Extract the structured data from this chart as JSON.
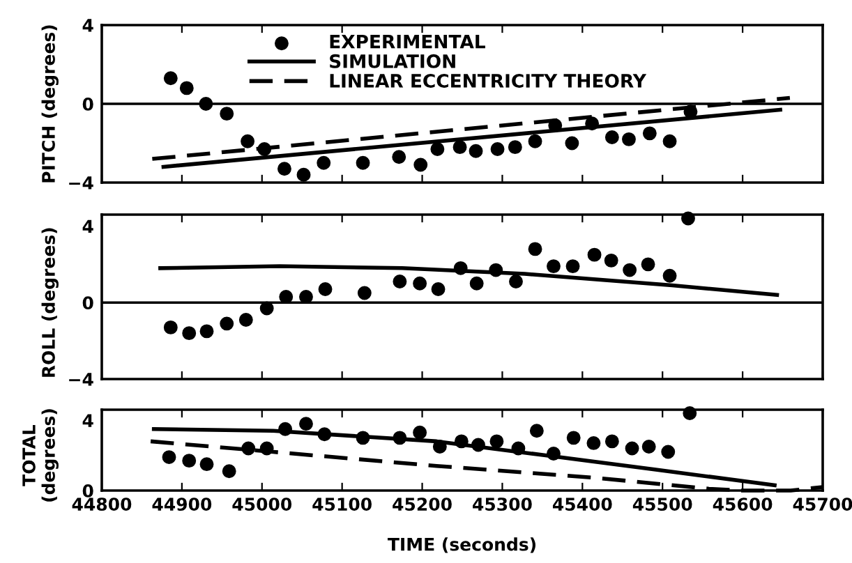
{
  "chart_data": [
    {
      "type": "scatter",
      "ylabel": "PITCH (degrees)",
      "xlim": [
        44800,
        45700
      ],
      "xticks": [
        44800,
        44900,
        45000,
        45100,
        45200,
        45300,
        45400,
        45500,
        45600,
        45700
      ],
      "ylim": [
        -4,
        4
      ],
      "yticks": [
        {
          "value": -4,
          "label": "−4"
        },
        0,
        4
      ],
      "tick_labels": "y",
      "legend": "top",
      "ref_lines": [
        {
          "axis": "y",
          "value": 0
        }
      ],
      "series": [
        {
          "name": "EXPERIMENTAL",
          "marker": "circle",
          "color": "#000000",
          "x": [
            44886,
            44906,
            44930,
            44956,
            44982,
            45003,
            45028,
            45052,
            45077,
            45126,
            45171,
            45198,
            45219,
            45247,
            45267,
            45294,
            45316,
            45341,
            45366,
            45387,
            45412,
            45437,
            45458,
            45484,
            45509,
            45535
          ],
          "values": [
            1.3,
            0.8,
            0,
            -0.5,
            -1.9,
            -2.3,
            -3.3,
            -3.6,
            -3.0,
            -3.0,
            -2.7,
            -3.1,
            -2.3,
            -2.2,
            -2.4,
            -2.3,
            -2.2,
            -1.9,
            -1.1,
            -2.0,
            -1.0,
            -1.7,
            -1.8,
            -1.5,
            -1.9,
            -0.4
          ]
        },
        {
          "name": "SIMULATION",
          "type": "line",
          "line_style": "solid",
          "color": "#000000",
          "x": [
            44877,
            45647
          ],
          "values": [
            -3.2,
            -0.3
          ]
        },
        {
          "name": "LINEAR ECCENTRICITY THEORY",
          "type": "line",
          "line_style": "dashed",
          "color": "#000000",
          "x": [
            44863,
            45659
          ],
          "values": [
            -2.8,
            0.3
          ]
        }
      ]
    },
    {
      "type": "scatter",
      "ylabel": "ROLL (degrees)",
      "xlim": [
        44800,
        45700
      ],
      "xticks": [
        44800,
        44900,
        45000,
        45100,
        45200,
        45300,
        45400,
        45500,
        45600,
        45700
      ],
      "ylim": [
        -4,
        4.6
      ],
      "yticks": [
        {
          "value": -4,
          "label": "−4"
        },
        0,
        4
      ],
      "tick_labels": "y",
      "ref_lines": [
        {
          "axis": "y",
          "value": 0
        }
      ],
      "series": [
        {
          "marker": "circle",
          "color": "#000000",
          "x": [
            44886,
            44909,
            44931,
            44956,
            44980,
            45006,
            45030,
            45055,
            45079,
            45128,
            45172,
            45197,
            45220,
            45248,
            45268,
            45292,
            45317,
            45341,
            45364,
            45388,
            45415,
            45436,
            45459,
            45482,
            45509,
            45532
          ],
          "values": [
            -1.3,
            -1.6,
            -1.5,
            -1.1,
            -0.9,
            -0.3,
            0.3,
            0.3,
            0.7,
            0.5,
            1.1,
            1.0,
            0.7,
            1.8,
            1.0,
            1.7,
            1.1,
            2.8,
            1.9,
            1.9,
            2.5,
            2.2,
            1.7,
            2.0,
            1.4,
            4.4
          ]
        },
        {
          "type": "line",
          "line_style": "solid",
          "color": "#000000",
          "x": [
            44873,
            45022,
            45175,
            45328,
            45512,
            45643
          ],
          "values": [
            1.8,
            1.9,
            1.8,
            1.5,
            0.9,
            0.4
          ]
        }
      ]
    },
    {
      "type": "scatter",
      "ylabel": "TOTAL\n(degrees)",
      "xlabel": "TIME (seconds)",
      "xlim": [
        44800,
        45700
      ],
      "xticks": [
        44800,
        44900,
        45000,
        45100,
        45200,
        45300,
        45400,
        45500,
        45600,
        45700
      ],
      "ylim": [
        0,
        4.6
      ],
      "yticks": [
        0,
        4
      ],
      "series": [
        {
          "marker": "circle",
          "color": "#000000",
          "x": [
            44884,
            44909,
            44931,
            44959,
            44983,
            45006,
            45029,
            45055,
            45078,
            45126,
            45172,
            45197,
            45222,
            45249,
            45270,
            45293,
            45320,
            45343,
            45364,
            45389,
            45414,
            45437,
            45462,
            45483,
            45507,
            45534
          ],
          "values": [
            1.9,
            1.7,
            1.5,
            1.1,
            2.4,
            2.4,
            3.5,
            3.8,
            3.2,
            3.0,
            3.0,
            3.3,
            2.5,
            2.8,
            2.6,
            2.8,
            2.4,
            3.4,
            2.1,
            3.0,
            2.7,
            2.8,
            2.4,
            2.5,
            2.2,
            4.4
          ]
        },
        {
          "type": "line",
          "line_style": "solid",
          "color": "#000000",
          "x": [
            44865,
            45014,
            45218,
            45354,
            45490,
            45640
          ],
          "values": [
            3.5,
            3.4,
            2.8,
            2.0,
            1.2,
            0.3
          ]
        },
        {
          "type": "line",
          "line_style": "dashed",
          "color": "#000000",
          "x": [
            44861,
            45014,
            45218,
            45422,
            45558,
            45600,
            45660,
            45700
          ],
          "values": [
            2.8,
            2.2,
            1.4,
            0.7,
            0.1,
            0,
            0,
            0.2
          ]
        }
      ]
    }
  ]
}
